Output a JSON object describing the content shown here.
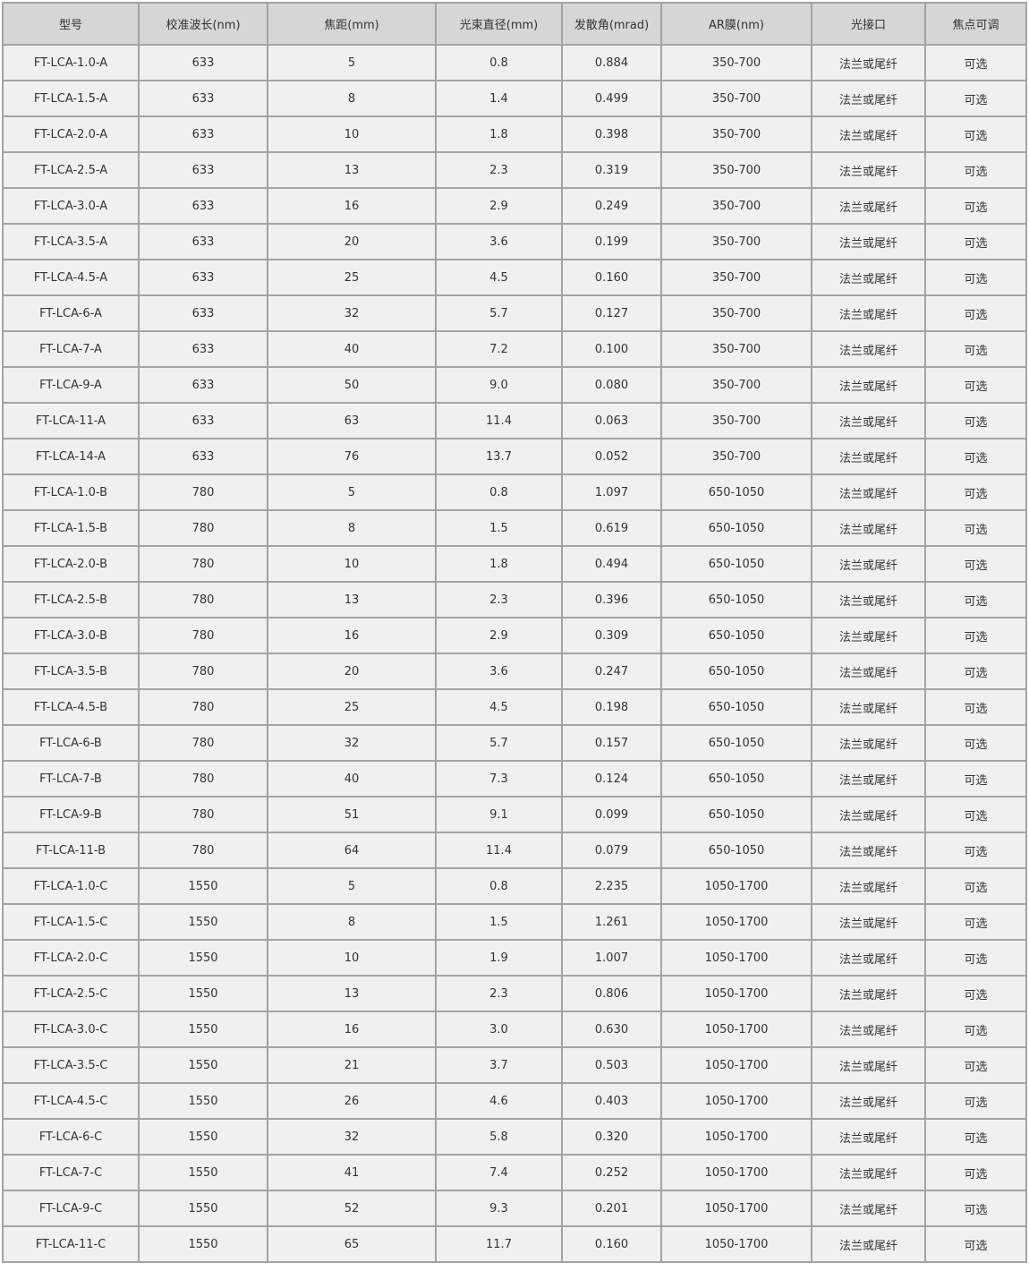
{
  "headers": [
    "型号",
    "校准波长(nm)",
    "焦距(mm)",
    "光束直径(mm)",
    "发散角(mrad)",
    "AR膜(nm)",
    "光接口",
    "焦点可调"
  ],
  "rows": [
    [
      "FT-LCA-1.0-A",
      "633",
      "5",
      "0.8",
      "0.884",
      "350-700",
      "法兰或尾纤",
      "可选"
    ],
    [
      "FT-LCA-1.5-A",
      "633",
      "8",
      "1.4",
      "0.499",
      "350-700",
      "法兰或尾纤",
      "可选"
    ],
    [
      "FT-LCA-2.0-A",
      "633",
      "10",
      "1.8",
      "0.398",
      "350-700",
      "法兰或尾纤",
      "可选"
    ],
    [
      "FT-LCA-2.5-A",
      "633",
      "13",
      "2.3",
      "0.319",
      "350-700",
      "法兰或尾纤",
      "可选"
    ],
    [
      "FT-LCA-3.0-A",
      "633",
      "16",
      "2.9",
      "0.249",
      "350-700",
      "法兰或尾纤",
      "可选"
    ],
    [
      "FT-LCA-3.5-A",
      "633",
      "20",
      "3.6",
      "0.199",
      "350-700",
      "法兰或尾纤",
      "可选"
    ],
    [
      "FT-LCA-4.5-A",
      "633",
      "25",
      "4.5",
      "0.160",
      "350-700",
      "法兰或尾纤",
      "可选"
    ],
    [
      "FT-LCA-6-A",
      "633",
      "32",
      "5.7",
      "0.127",
      "350-700",
      "法兰或尾纤",
      "可选"
    ],
    [
      "FT-LCA-7-A",
      "633",
      "40",
      "7.2",
      "0.100",
      "350-700",
      "法兰或尾纤",
      "可选"
    ],
    [
      "FT-LCA-9-A",
      "633",
      "50",
      "9.0",
      "0.080",
      "350-700",
      "法兰或尾纤",
      "可选"
    ],
    [
      "FT-LCA-11-A",
      "633",
      "63",
      "11.4",
      "0.063",
      "350-700",
      "法兰或尾纤",
      "可选"
    ],
    [
      "FT-LCA-14-A",
      "633",
      "76",
      "13.7",
      "0.052",
      "350-700",
      "法兰或尾纤",
      "可选"
    ],
    [
      "FT-LCA-1.0-B",
      "780",
      "5",
      "0.8",
      "1.097",
      "650-1050",
      "法兰或尾纤",
      "可选"
    ],
    [
      "FT-LCA-1.5-B",
      "780",
      "8",
      "1.5",
      "0.619",
      "650-1050",
      "法兰或尾纤",
      "可选"
    ],
    [
      "FT-LCA-2.0-B",
      "780",
      "10",
      "1.8",
      "0.494",
      "650-1050",
      "法兰或尾纤",
      "可选"
    ],
    [
      "FT-LCA-2.5-B",
      "780",
      "13",
      "2.3",
      "0.396",
      "650-1050",
      "法兰或尾纤",
      "可选"
    ],
    [
      "FT-LCA-3.0-B",
      "780",
      "16",
      "2.9",
      "0.309",
      "650-1050",
      "法兰或尾纤",
      "可选"
    ],
    [
      "FT-LCA-3.5-B",
      "780",
      "20",
      "3.6",
      "0.247",
      "650-1050",
      "法兰或尾纤",
      "可选"
    ],
    [
      "FT-LCA-4.5-B",
      "780",
      "25",
      "4.5",
      "0.198",
      "650-1050",
      "法兰或尾纤",
      "可选"
    ],
    [
      "FT-LCA-6-B",
      "780",
      "32",
      "5.7",
      "0.157",
      "650-1050",
      "法兰或尾纤",
      "可选"
    ],
    [
      "FT-LCA-7-B",
      "780",
      "40",
      "7.3",
      "0.124",
      "650-1050",
      "法兰或尾纤",
      "可选"
    ],
    [
      "FT-LCA-9-B",
      "780",
      "51",
      "9.1",
      "0.099",
      "650-1050",
      "法兰或尾纤",
      "可选"
    ],
    [
      "FT-LCA-11-B",
      "780",
      "64",
      "11.4",
      "0.079",
      "650-1050",
      "法兰或尾纤",
      "可选"
    ],
    [
      "FT-LCA-1.0-C",
      "1550",
      "5",
      "0.8",
      "2.235",
      "1050-1700",
      "法兰或尾纤",
      "可选"
    ],
    [
      "FT-LCA-1.5-C",
      "1550",
      "8",
      "1.5",
      "1.261",
      "1050-1700",
      "法兰或尾纤",
      "可选"
    ],
    [
      "FT-LCA-2.0-C",
      "1550",
      "10",
      "1.9",
      "1.007",
      "1050-1700",
      "法兰或尾纤",
      "可选"
    ],
    [
      "FT-LCA-2.5-C",
      "1550",
      "13",
      "2.3",
      "0.806",
      "1050-1700",
      "法兰或尾纤",
      "可选"
    ],
    [
      "FT-LCA-3.0-C",
      "1550",
      "16",
      "3.0",
      "0.630",
      "1050-1700",
      "法兰或尾纤",
      "可选"
    ],
    [
      "FT-LCA-3.5-C",
      "1550",
      "21",
      "3.7",
      "0.503",
      "1050-1700",
      "法兰或尾纤",
      "可选"
    ],
    [
      "FT-LCA-4.5-C",
      "1550",
      "26",
      "4.6",
      "0.403",
      "1050-1700",
      "法兰或尾纤",
      "可选"
    ],
    [
      "FT-LCA-6-C",
      "1550",
      "32",
      "5.8",
      "0.320",
      "1050-1700",
      "法兰或尾纤",
      "可选"
    ],
    [
      "FT-LCA-7-C",
      "1550",
      "41",
      "7.4",
      "0.252",
      "1050-1700",
      "法兰或尾纤",
      "可选"
    ],
    [
      "FT-LCA-9-C",
      "1550",
      "52",
      "9.3",
      "0.201",
      "1050-1700",
      "法兰或尾纤",
      "可选"
    ],
    [
      "FT-LCA-11-C",
      "1550",
      "65",
      "11.7",
      "0.160",
      "1050-1700",
      "法兰或尾纤",
      "可选"
    ]
  ]
}
